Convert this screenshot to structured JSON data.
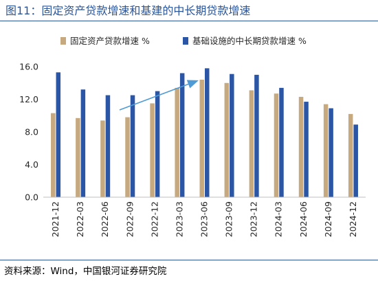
{
  "figure": {
    "title": "图11：固定资产贷款增速和基建的中长期贷款增速",
    "source": "资料来源：Wind，中国银河证券研究院"
  },
  "chart_data": {
    "type": "bar",
    "categories": [
      "2021-12",
      "2022-03",
      "2022-06",
      "2022-09",
      "2022-12",
      "2023-03",
      "2023-06",
      "2023-09",
      "2023-12",
      "2024-03",
      "2024-06",
      "2024-09",
      "2024-12"
    ],
    "series": [
      {
        "name": "固定资产贷款增速 %",
        "color": "#c6a97f",
        "values": [
          10.3,
          9.7,
          9.4,
          9.8,
          11.5,
          13.4,
          14.4,
          14.0,
          13.1,
          12.7,
          12.3,
          11.4,
          10.2
        ]
      },
      {
        "name": "基础设施的中长期贷款增速 %",
        "color": "#2b56a6",
        "values": [
          15.3,
          13.2,
          12.5,
          12.5,
          13.0,
          15.2,
          15.8,
          15.1,
          15.0,
          13.4,
          11.7,
          10.9,
          8.9
        ]
      }
    ],
    "yticks": [
      "16.0",
      "12.0",
      "8.0",
      "4.0",
      "0.0"
    ],
    "ylim": [
      0,
      16
    ],
    "xlabel": "",
    "ylabel": "",
    "legend": "top",
    "annotation": "upward-arrow",
    "arrow_color": "#4f9bd6",
    "grid": false
  }
}
